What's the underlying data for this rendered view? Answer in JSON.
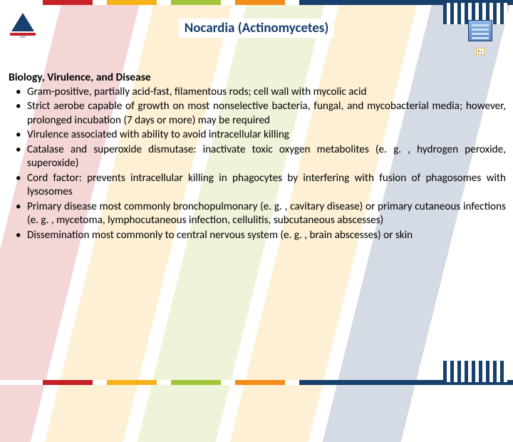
{
  "title": "Nocardia (Actinomycetes)",
  "subtitle": "Biology, Virulence, and Disease",
  "bullets": [
    "Gram-positive, partially acid-fast, filamentous rods; cell wall with mycolic acid",
    "Strict aerobe capable of growth on most nonselective bacteria, fungal, and mycobacterial media; however, prolonged incubation (7 days or more) may be required",
    "Virulence associated with ability to avoid intracellular killing",
    "Catalase and superoxide dismutase: inactivate toxic oxygen metabolites (e. g. , hydrogen peroxide, superoxide)",
    "Cord factor: prevents intracellular killing in phagocytes by interfering with fusion of phagosomes with lysosomes",
    "Primary disease most commonly bronchopulmonary (e. g. , cavitary disease) or primary cutaneous infections (e. g. , mycetoma, lymphocutaneous infection, cellulitis, subcutaneous abscesses)",
    "Dissemination most commonly to central nervous system (e. g. , brain abscesses) or skin"
  ],
  "brand_colors": {
    "red": "#c52127",
    "yellow": "#f6b21b",
    "green": "#a3c73a",
    "orange": "#f28c1b",
    "navy": "#17406d"
  },
  "logo_right_badge": "E   L"
}
